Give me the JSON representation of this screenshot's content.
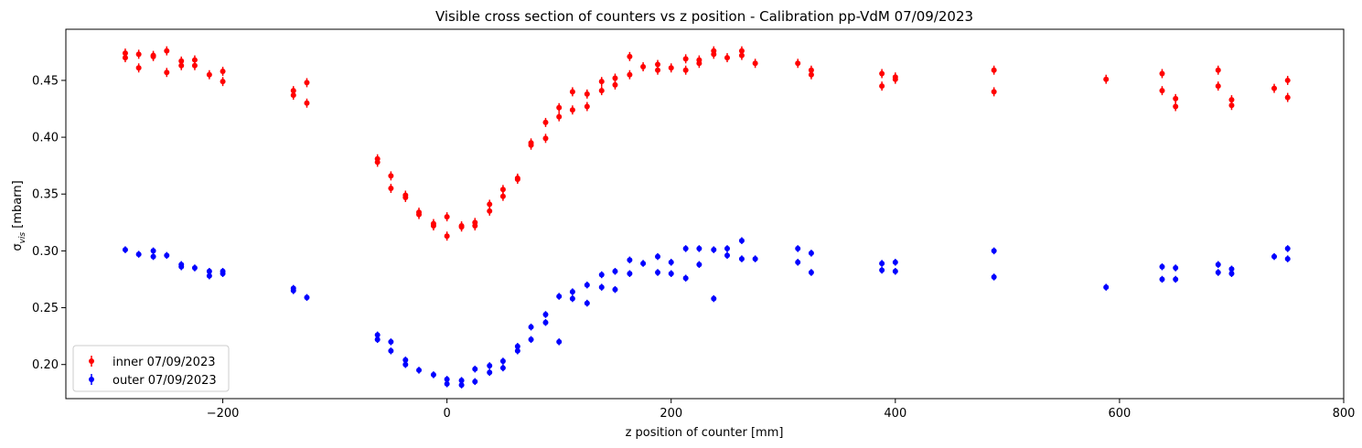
{
  "chart_data": {
    "type": "scatter",
    "title": "Visible cross section of counters vs z position - Calibration pp-VdM 07/09/2023",
    "xlabel": "z position of counter [mm]",
    "ylabel_main": "σ",
    "ylabel_sub": "vis",
    "ylabel_unit": " [mbarn]",
    "xlim": [
      -340,
      800
    ],
    "ylim": [
      0.17,
      0.495
    ],
    "xticks": [
      -200,
      0,
      200,
      400,
      600,
      800
    ],
    "xtick_labels": [
      "−200",
      "0",
      "200",
      "400",
      "600",
      "800"
    ],
    "yticks": [
      0.2,
      0.25,
      0.3,
      0.35,
      0.4,
      0.45
    ],
    "ytick_labels": [
      "0.20",
      "0.25",
      "0.30",
      "0.35",
      "0.40",
      "0.45"
    ],
    "grid": false,
    "legend_position": "lower-left",
    "series": [
      {
        "name": "inner 07/09/2023",
        "color": "#ff0000",
        "error": 0.004,
        "points": [
          [
            -287,
            0.474
          ],
          [
            -287,
            0.47
          ],
          [
            -275,
            0.473
          ],
          [
            -275,
            0.461
          ],
          [
            -262,
            0.472
          ],
          [
            -262,
            0.471
          ],
          [
            -250,
            0.476
          ],
          [
            -250,
            0.457
          ],
          [
            -237,
            0.467
          ],
          [
            -237,
            0.463
          ],
          [
            -225,
            0.468
          ],
          [
            -225,
            0.463
          ],
          [
            -212,
            0.455
          ],
          [
            -200,
            0.458
          ],
          [
            -200,
            0.449
          ],
          [
            -137,
            0.441
          ],
          [
            -137,
            0.437
          ],
          [
            -125,
            0.448
          ],
          [
            -125,
            0.43
          ],
          [
            -62,
            0.381
          ],
          [
            -62,
            0.378
          ],
          [
            -50,
            0.366
          ],
          [
            -50,
            0.355
          ],
          [
            -37,
            0.349
          ],
          [
            -37,
            0.347
          ],
          [
            -25,
            0.334
          ],
          [
            -25,
            0.332
          ],
          [
            -12,
            0.324
          ],
          [
            -12,
            0.322
          ],
          [
            0,
            0.33
          ],
          [
            0,
            0.313
          ],
          [
            13,
            0.322
          ],
          [
            13,
            0.321
          ],
          [
            25,
            0.325
          ],
          [
            25,
            0.322
          ],
          [
            38,
            0.341
          ],
          [
            38,
            0.335
          ],
          [
            50,
            0.354
          ],
          [
            50,
            0.348
          ],
          [
            63,
            0.364
          ],
          [
            63,
            0.363
          ],
          [
            75,
            0.395
          ],
          [
            75,
            0.393
          ],
          [
            88,
            0.413
          ],
          [
            88,
            0.399
          ],
          [
            100,
            0.426
          ],
          [
            100,
            0.418
          ],
          [
            112,
            0.44
          ],
          [
            112,
            0.424
          ],
          [
            125,
            0.438
          ],
          [
            125,
            0.427
          ],
          [
            138,
            0.449
          ],
          [
            138,
            0.441
          ],
          [
            150,
            0.452
          ],
          [
            150,
            0.446
          ],
          [
            163,
            0.471
          ],
          [
            163,
            0.455
          ],
          [
            175,
            0.462
          ],
          [
            188,
            0.464
          ],
          [
            188,
            0.459
          ],
          [
            200,
            0.461
          ],
          [
            213,
            0.469
          ],
          [
            213,
            0.459
          ],
          [
            225,
            0.468
          ],
          [
            225,
            0.465
          ],
          [
            238,
            0.476
          ],
          [
            238,
            0.473
          ],
          [
            250,
            0.47
          ],
          [
            263,
            0.476
          ],
          [
            263,
            0.472
          ],
          [
            275,
            0.465
          ],
          [
            313,
            0.465
          ],
          [
            325,
            0.459
          ],
          [
            325,
            0.455
          ],
          [
            388,
            0.456
          ],
          [
            388,
            0.445
          ],
          [
            400,
            0.453
          ],
          [
            400,
            0.451
          ],
          [
            488,
            0.459
          ],
          [
            488,
            0.44
          ],
          [
            588,
            0.451
          ],
          [
            638,
            0.456
          ],
          [
            638,
            0.441
          ],
          [
            650,
            0.434
          ],
          [
            650,
            0.427
          ],
          [
            688,
            0.459
          ],
          [
            688,
            0.445
          ],
          [
            700,
            0.433
          ],
          [
            700,
            0.428
          ],
          [
            738,
            0.443
          ],
          [
            750,
            0.45
          ],
          [
            750,
            0.435
          ]
        ]
      },
      {
        "name": "outer 07/09/2023",
        "color": "#0000ff",
        "error": 0.003,
        "points": [
          [
            -287,
            0.301
          ],
          [
            -275,
            0.297
          ],
          [
            -262,
            0.3
          ],
          [
            -262,
            0.295
          ],
          [
            -250,
            0.296
          ],
          [
            -237,
            0.288
          ],
          [
            -237,
            0.286
          ],
          [
            -225,
            0.285
          ],
          [
            -212,
            0.282
          ],
          [
            -212,
            0.278
          ],
          [
            -200,
            0.282
          ],
          [
            -200,
            0.28
          ],
          [
            -137,
            0.267
          ],
          [
            -137,
            0.265
          ],
          [
            -125,
            0.259
          ],
          [
            -62,
            0.226
          ],
          [
            -62,
            0.222
          ],
          [
            -50,
            0.22
          ],
          [
            -50,
            0.212
          ],
          [
            -37,
            0.204
          ],
          [
            -37,
            0.2
          ],
          [
            -25,
            0.195
          ],
          [
            -12,
            0.191
          ],
          [
            0,
            0.187
          ],
          [
            0,
            0.183
          ],
          [
            13,
            0.186
          ],
          [
            13,
            0.182
          ],
          [
            25,
            0.196
          ],
          [
            25,
            0.185
          ],
          [
            38,
            0.199
          ],
          [
            38,
            0.193
          ],
          [
            50,
            0.203
          ],
          [
            50,
            0.197
          ],
          [
            63,
            0.216
          ],
          [
            63,
            0.212
          ],
          [
            75,
            0.233
          ],
          [
            75,
            0.222
          ],
          [
            88,
            0.244
          ],
          [
            88,
            0.237
          ],
          [
            100,
            0.26
          ],
          [
            100,
            0.22
          ],
          [
            112,
            0.264
          ],
          [
            112,
            0.258
          ],
          [
            125,
            0.27
          ],
          [
            125,
            0.254
          ],
          [
            138,
            0.279
          ],
          [
            138,
            0.268
          ],
          [
            150,
            0.282
          ],
          [
            150,
            0.266
          ],
          [
            163,
            0.292
          ],
          [
            163,
            0.28
          ],
          [
            175,
            0.289
          ],
          [
            188,
            0.295
          ],
          [
            188,
            0.281
          ],
          [
            200,
            0.29
          ],
          [
            200,
            0.28
          ],
          [
            213,
            0.302
          ],
          [
            213,
            0.276
          ],
          [
            225,
            0.302
          ],
          [
            225,
            0.288
          ],
          [
            238,
            0.301
          ],
          [
            238,
            0.258
          ],
          [
            250,
            0.302
          ],
          [
            250,
            0.296
          ],
          [
            263,
            0.309
          ],
          [
            263,
            0.293
          ],
          [
            275,
            0.293
          ],
          [
            313,
            0.302
          ],
          [
            313,
            0.29
          ],
          [
            325,
            0.298
          ],
          [
            325,
            0.281
          ],
          [
            388,
            0.289
          ],
          [
            388,
            0.283
          ],
          [
            400,
            0.29
          ],
          [
            400,
            0.282
          ],
          [
            488,
            0.3
          ],
          [
            488,
            0.277
          ],
          [
            588,
            0.268
          ],
          [
            638,
            0.286
          ],
          [
            638,
            0.275
          ],
          [
            650,
            0.285
          ],
          [
            650,
            0.275
          ],
          [
            688,
            0.288
          ],
          [
            688,
            0.281
          ],
          [
            700,
            0.284
          ],
          [
            700,
            0.28
          ],
          [
            738,
            0.295
          ],
          [
            750,
            0.302
          ],
          [
            750,
            0.293
          ]
        ]
      }
    ]
  }
}
